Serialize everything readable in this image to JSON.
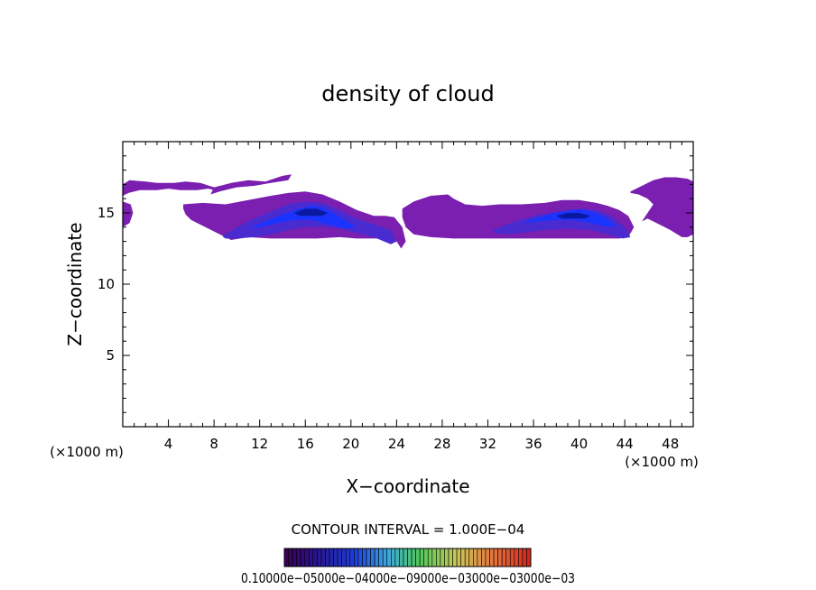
{
  "chart_data": {
    "type": "heatmap",
    "title": "density of cloud",
    "xlabel": "X−coordinate",
    "ylabel": "Z−coordinate",
    "x_unit_left": "(×1000 m)",
    "x_unit_right": "(×1000 m)",
    "xlim": [
      0,
      50
    ],
    "ylim": [
      0,
      20
    ],
    "x_ticks": [
      4,
      8,
      12,
      16,
      20,
      24,
      28,
      32,
      36,
      40,
      44,
      48
    ],
    "y_ticks": [
      5,
      10,
      15
    ],
    "contour_interval_text": "CONTOUR INTERVAL = 1.000E−04",
    "colorbar_labels_text": "0.10000e−05000e−04000e−09000e−03000e−03000e−03",
    "colors": {
      "low": "#7a1fb0",
      "mid": "#4a2bd0",
      "high": "#1a33ff",
      "peak": "#0a1aa0"
    },
    "regions": [
      {
        "level": "low",
        "x": [
          0.0,
          0.6,
          2.0,
          3.0,
          4.5,
          5.5,
          6.8,
          8.0,
          8.5,
          7.5,
          6.5,
          5.0,
          4.0,
          3.0,
          1.5,
          0.5,
          0.0
        ],
        "z": [
          17.0,
          17.3,
          17.2,
          17.1,
          17.1,
          17.2,
          17.1,
          16.8,
          16.5,
          16.7,
          16.6,
          16.6,
          16.7,
          16.6,
          16.6,
          16.4,
          16.2
        ]
      },
      {
        "level": "low",
        "x": [
          0.0,
          0.7,
          0.9,
          0.6,
          0.0
        ],
        "z": [
          15.8,
          15.6,
          15.0,
          14.3,
          14.0
        ]
      },
      {
        "level": "low",
        "x": [
          8.0,
          9.5,
          11.0,
          12.5,
          14.0,
          14.8,
          14.5,
          13.0,
          11.5,
          10.0,
          8.5,
          7.7
        ],
        "z": [
          16.8,
          17.1,
          17.3,
          17.2,
          17.6,
          17.7,
          17.3,
          17.1,
          16.9,
          16.8,
          16.5,
          16.3
        ]
      },
      {
        "level": "low",
        "x": [
          5.3,
          7.0,
          9.0,
          11.0,
          13.0,
          14.5,
          16.0,
          17.5,
          19.0,
          20.5,
          22.0,
          23.0,
          23.8,
          24.5,
          24.8,
          24.4,
          24.0,
          22.5,
          21.5,
          20.5,
          19.0,
          17.0,
          15.0,
          13.0,
          11.0,
          9.5,
          8.5,
          7.0,
          6.0,
          5.5,
          5.3
        ],
        "z": [
          15.6,
          15.7,
          15.6,
          15.9,
          16.2,
          16.4,
          16.5,
          16.3,
          15.8,
          15.2,
          14.8,
          14.8,
          14.7,
          14.0,
          13.0,
          12.5,
          13.0,
          13.2,
          13.2,
          13.2,
          13.3,
          13.2,
          13.2,
          13.2,
          13.3,
          13.1,
          13.5,
          14.1,
          14.5,
          14.9,
          15.3
        ]
      },
      {
        "level": "low",
        "x": [
          24.5,
          25.5,
          27.0,
          28.5,
          29.0,
          30.0,
          31.5,
          33.0,
          35.0,
          37.0,
          38.5,
          40.0,
          41.5,
          42.5,
          43.5,
          44.3,
          44.8,
          44.3,
          43.5,
          42.5,
          41.0,
          39.0,
          37.0,
          35.0,
          33.0,
          31.0,
          29.0,
          27.0,
          25.5,
          24.8,
          24.5
        ],
        "z": [
          15.3,
          15.8,
          16.2,
          16.3,
          16.0,
          15.6,
          15.5,
          15.6,
          15.6,
          15.7,
          15.9,
          15.9,
          15.7,
          15.5,
          15.2,
          14.8,
          14.0,
          13.3,
          13.2,
          13.2,
          13.2,
          13.2,
          13.2,
          13.2,
          13.2,
          13.2,
          13.2,
          13.3,
          13.5,
          14.0,
          14.7
        ]
      },
      {
        "level": "low",
        "x": [
          44.5,
          45.5,
          46.5,
          47.5,
          48.5,
          49.5,
          50.0,
          50.0,
          49.5,
          49.0,
          48.0,
          47.0,
          46.0,
          45.5,
          46.0,
          46.5,
          46.0,
          45.2,
          44.5
        ],
        "z": [
          16.5,
          16.9,
          17.3,
          17.5,
          17.5,
          17.4,
          17.2,
          13.5,
          13.3,
          13.3,
          13.8,
          14.2,
          14.6,
          14.4,
          15.0,
          15.6,
          16.0,
          16.3,
          16.4
        ]
      },
      {
        "level": "mid",
        "x": [
          8.8,
          10.0,
          11.5,
          13.0,
          14.5,
          16.0,
          17.5,
          19.0,
          20.5,
          22.0,
          23.5,
          24.0,
          23.5,
          22.0,
          20.5,
          19.0,
          17.5,
          16.0,
          14.5,
          13.0,
          11.5,
          10.0,
          9.0,
          8.8
        ],
        "z": [
          13.4,
          14.0,
          14.6,
          15.1,
          15.6,
          15.8,
          15.7,
          15.2,
          14.6,
          14.2,
          13.8,
          13.0,
          12.8,
          13.3,
          13.6,
          13.9,
          14.0,
          14.0,
          13.8,
          13.5,
          13.3,
          13.2,
          13.2,
          13.3
        ]
      },
      {
        "level": "mid",
        "x": [
          32.5,
          34.0,
          36.0,
          38.0,
          40.0,
          41.5,
          42.8,
          44.0,
          44.5,
          43.8,
          42.5,
          41.0,
          39.0,
          37.0,
          35.0,
          33.5,
          32.5
        ],
        "z": [
          13.8,
          14.3,
          14.8,
          15.1,
          15.3,
          15.2,
          14.8,
          14.0,
          13.3,
          13.2,
          13.5,
          13.8,
          13.9,
          13.8,
          13.6,
          13.5,
          13.6
        ]
      },
      {
        "level": "high",
        "x": [
          11.0,
          12.5,
          14.0,
          15.5,
          16.5,
          17.5,
          18.5,
          19.5,
          20.5,
          19.5,
          18.0,
          16.5,
          15.0,
          13.5,
          12.0,
          11.0
        ],
        "z": [
          13.9,
          14.4,
          14.9,
          15.3,
          15.5,
          15.4,
          15.0,
          14.5,
          14.0,
          13.9,
          14.2,
          14.5,
          14.5,
          14.3,
          14.0,
          13.9
        ]
      },
      {
        "level": "high",
        "x": [
          35.0,
          36.5,
          38.0,
          39.5,
          40.5,
          41.5,
          42.5,
          43.2,
          42.5,
          41.0,
          39.5,
          38.0,
          36.5,
          35.0
        ],
        "z": [
          14.3,
          14.7,
          15.0,
          15.2,
          15.2,
          15.0,
          14.6,
          14.1,
          14.0,
          14.3,
          14.5,
          14.5,
          14.4,
          14.3
        ]
      },
      {
        "level": "peak",
        "x": [
          15.0,
          16.0,
          17.0,
          18.0,
          17.5,
          16.5,
          15.5,
          15.0
        ],
        "z": [
          15.0,
          15.3,
          15.3,
          15.0,
          14.8,
          14.8,
          14.8,
          15.0
        ]
      },
      {
        "level": "peak",
        "x": [
          38.0,
          39.0,
          40.0,
          41.0,
          40.5,
          39.5,
          38.5,
          38.0
        ],
        "z": [
          14.8,
          15.0,
          15.0,
          14.8,
          14.6,
          14.6,
          14.6,
          14.8
        ]
      }
    ]
  }
}
